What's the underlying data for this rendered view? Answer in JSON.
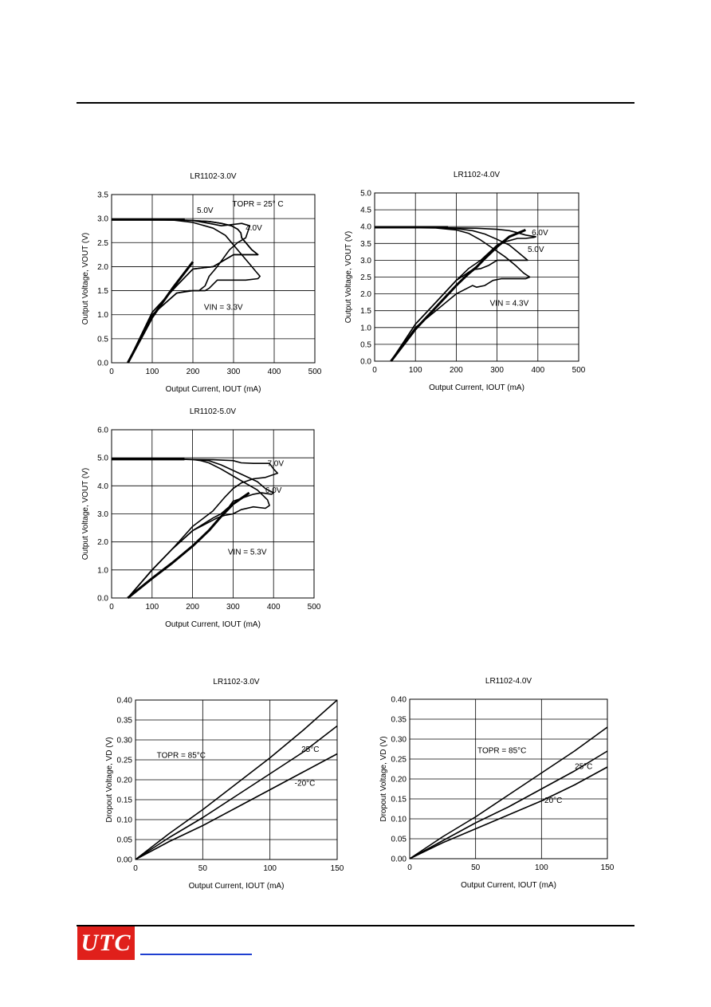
{
  "footer": {
    "logo_text": "UTC"
  },
  "chart_data": [
    {
      "type": "line",
      "title": "LR1102-3.0V",
      "xlabel": "Output Current, IOUT (mA)",
      "ylabel": "Output Voltage, VOUT (V)",
      "xlim": [
        0,
        500
      ],
      "ylim": [
        0,
        3.5
      ],
      "xticks": [
        "0",
        "100",
        "200",
        "300",
        "400",
        "500"
      ],
      "yticks": [
        "0.0",
        "0.5",
        "1.0",
        "1.5",
        "2.0",
        "2.5",
        "3.0",
        "3.5"
      ],
      "grid": true,
      "annotations": [
        {
          "text": "TOPR = 25° C",
          "x": 360,
          "y": 3.25
        },
        {
          "text": "5.0V",
          "x": 230,
          "y": 3.12
        },
        {
          "text": "4.0V",
          "x": 350,
          "y": 2.75
        },
        {
          "text": "VIN = 3.3V",
          "x": 275,
          "y": 1.1
        }
      ],
      "series": [
        {
          "x": [
            0,
            100,
            200,
            240,
            270,
            295,
            310,
            318,
            320,
            330,
            345,
            360,
            350,
            300,
            250,
            200,
            160,
            100,
            40
          ],
          "y": [
            2.98,
            2.98,
            2.96,
            2.94,
            2.9,
            2.85,
            2.78,
            2.7,
            2.6,
            2.5,
            2.35,
            2.25,
            2.25,
            2.25,
            2.0,
            1.95,
            1.6,
            1.05,
            0.0
          ]
        },
        {
          "x": [
            0,
            100,
            200,
            240,
            270,
            295,
            310,
            318,
            320,
            330,
            345,
            360,
            350,
            300,
            250,
            200,
            160,
            100,
            40
          ],
          "y": [
            2.98,
            2.98,
            2.96,
            2.94,
            2.9,
            2.85,
            2.78,
            2.7,
            2.6,
            2.5,
            2.35,
            2.25,
            2.25,
            2.25,
            2.0,
            1.95,
            1.6,
            1.05,
            0.0
          ]
        },
        {
          "x": [
            0,
            150,
            200,
            250,
            280,
            300,
            320,
            340,
            355,
            365,
            360,
            330,
            300,
            260,
            240,
            230,
            200,
            160,
            100,
            40
          ],
          "y": [
            2.98,
            2.97,
            2.92,
            2.8,
            2.65,
            2.45,
            2.25,
            2.05,
            1.9,
            1.8,
            1.75,
            1.72,
            1.72,
            1.72,
            1.55,
            1.5,
            1.5,
            1.45,
            1.0,
            0.0
          ]
        },
        {
          "x": [
            0,
            150,
            200,
            240,
            270,
            300,
            320,
            340,
            330,
            310,
            290,
            260,
            240,
            230,
            215,
            190,
            160,
            100,
            40
          ],
          "y": [
            2.98,
            2.98,
            2.96,
            2.9,
            2.85,
            2.88,
            2.9,
            2.85,
            2.6,
            2.5,
            2.35,
            2.0,
            1.8,
            1.6,
            1.5,
            1.5,
            1.45,
            1.0,
            0.0
          ]
        },
        {
          "x": [
            40,
            100,
            150,
            200
          ],
          "y": [
            0.0,
            0.95,
            1.55,
            2.1
          ]
        }
      ]
    },
    {
      "type": "line",
      "title": "LR1102-4.0V",
      "xlabel": "Output Current, IOUT (mA)",
      "ylabel": "Output Voltage, VOUT (V)",
      "xlim": [
        0,
        500
      ],
      "ylim": [
        0,
        5.0
      ],
      "xticks": [
        "0",
        "100",
        "200",
        "300",
        "400",
        "500"
      ],
      "yticks": [
        "0.0",
        "0.5",
        "1.0",
        "1.5",
        "2.0",
        "2.5",
        "3.0",
        "3.5",
        "4.0",
        "4.5",
        "5.0"
      ],
      "grid": true,
      "annotations": [
        {
          "text": "6.0V",
          "x": 405,
          "y": 3.75
        },
        {
          "text": "5.0V",
          "x": 395,
          "y": 3.25
        },
        {
          "text": "VIN = 4.3V",
          "x": 330,
          "y": 1.65
        }
      ],
      "series": [
        {
          "x": [
            0,
            150,
            200,
            250,
            300,
            330,
            350,
            370,
            395,
            390,
            370,
            350,
            320,
            300,
            260,
            230,
            200,
            150,
            100,
            40
          ],
          "y": [
            3.98,
            3.97,
            3.96,
            3.95,
            3.92,
            3.88,
            3.82,
            3.75,
            3.7,
            3.68,
            3.65,
            3.65,
            3.55,
            3.45,
            3.0,
            2.75,
            2.4,
            1.75,
            1.1,
            0.0
          ]
        },
        {
          "x": [
            0,
            150,
            200,
            240,
            270,
            300,
            330,
            350,
            370,
            375,
            360,
            330,
            300,
            280,
            260,
            240,
            200,
            150,
            100,
            40
          ],
          "y": [
            3.98,
            3.97,
            3.94,
            3.88,
            3.78,
            3.62,
            3.45,
            3.25,
            3.05,
            3.0,
            3.0,
            3.0,
            3.0,
            2.85,
            2.75,
            2.72,
            2.4,
            1.75,
            1.1,
            0.0
          ]
        },
        {
          "x": [
            0,
            150,
            200,
            230,
            260,
            290,
            320,
            345,
            365,
            380,
            370,
            340,
            310,
            290,
            270,
            250,
            240,
            200,
            150,
            100,
            40
          ],
          "y": [
            3.98,
            3.96,
            3.9,
            3.8,
            3.6,
            3.35,
            3.1,
            2.85,
            2.62,
            2.5,
            2.45,
            2.45,
            2.45,
            2.4,
            2.25,
            2.2,
            2.25,
            2.0,
            1.5,
            1.0,
            0.0
          ]
        },
        {
          "x": [
            40,
            100,
            150,
            200,
            230,
            250,
            270,
            300,
            330,
            370
          ],
          "y": [
            0.0,
            0.95,
            1.6,
            2.25,
            2.6,
            2.8,
            3.05,
            3.4,
            3.7,
            3.9
          ]
        }
      ]
    },
    {
      "type": "line",
      "title": "LR1102-5.0V",
      "xlabel": "Output Current, IOUT (mA)",
      "ylabel": "Output Voltage, VOUT (V)",
      "xlim": [
        0,
        500
      ],
      "ylim": [
        0,
        6.0
      ],
      "xticks": [
        "0",
        "100",
        "200",
        "300",
        "400",
        "500"
      ],
      "yticks": [
        "0.0",
        "1.0",
        "2.0",
        "3.0",
        "4.0",
        "5.0",
        "6.0"
      ],
      "grid": true,
      "annotations": [
        {
          "text": "7.0V",
          "x": 405,
          "y": 4.7
        },
        {
          "text": "6.0V",
          "x": 400,
          "y": 3.75
        },
        {
          "text": "VIN = 5.3V",
          "x": 335,
          "y": 1.55
        }
      ],
      "series": [
        {
          "x": [
            0,
            150,
            200,
            250,
            300,
            320,
            350,
            390,
            400,
            410,
            400,
            380,
            350,
            320,
            300,
            280,
            250,
            200,
            150,
            100,
            40
          ],
          "y": [
            4.95,
            4.95,
            4.94,
            4.93,
            4.9,
            4.82,
            4.8,
            4.8,
            4.6,
            4.45,
            4.4,
            4.3,
            4.25,
            4.1,
            3.9,
            3.6,
            3.1,
            2.55,
            1.75,
            1.0,
            0.0
          ]
        },
        {
          "x": [
            0,
            150,
            200,
            240,
            270,
            300,
            330,
            360,
            380,
            400,
            395,
            370,
            350,
            330,
            310,
            300,
            290,
            270,
            250,
            200,
            150,
            100,
            40
          ],
          "y": [
            4.95,
            4.95,
            4.94,
            4.9,
            4.75,
            4.55,
            4.35,
            4.15,
            3.9,
            3.75,
            3.7,
            3.75,
            3.7,
            3.6,
            3.5,
            3.45,
            3.25,
            3.0,
            2.85,
            2.4,
            1.75,
            1.0,
            0.0
          ]
        },
        {
          "x": [
            0,
            150,
            200,
            220,
            240,
            270,
            300,
            330,
            360,
            385,
            390,
            380,
            350,
            320,
            300,
            280,
            270,
            260,
            240,
            200,
            150,
            100,
            40
          ],
          "y": [
            4.95,
            4.95,
            4.94,
            4.9,
            4.82,
            4.6,
            4.35,
            4.1,
            3.85,
            3.5,
            3.3,
            3.2,
            3.25,
            3.15,
            3.0,
            2.95,
            2.9,
            2.85,
            2.7,
            2.4,
            1.75,
            1.0,
            0.0
          ]
        },
        {
          "x": [
            40,
            100,
            150,
            200,
            240,
            270,
            300,
            340
          ],
          "y": [
            0.0,
            0.7,
            1.25,
            1.85,
            2.4,
            2.9,
            3.35,
            3.75
          ]
        }
      ]
    },
    {
      "type": "line",
      "title": "LR1102-3.0V",
      "xlabel": "Output Current, IOUT (mA)",
      "ylabel": "Dropout Voltage, VD (V)",
      "xlim": [
        0,
        150
      ],
      "ylim": [
        0,
        0.4
      ],
      "xticks": [
        "0",
        "50",
        "100",
        "150"
      ],
      "yticks": [
        "0.00",
        "0.05",
        "0.10",
        "0.15",
        "0.20",
        "0.25",
        "0.30",
        "0.35",
        "0.40"
      ],
      "grid": true,
      "annotations": [
        {
          "text": "TOPR = 85°C",
          "x": 34,
          "y": 0.255
        },
        {
          "text": "25°C",
          "x": 130,
          "y": 0.27
        },
        {
          "text": "-20°C",
          "x": 126,
          "y": 0.185
        }
      ],
      "series": [
        {
          "name": "85°C",
          "x": [
            0,
            25,
            50,
            75,
            100,
            125,
            150
          ],
          "y": [
            0,
            0.065,
            0.125,
            0.19,
            0.255,
            0.325,
            0.4
          ]
        },
        {
          "name": "25°C",
          "x": [
            0,
            25,
            50,
            75,
            100,
            125,
            150
          ],
          "y": [
            0,
            0.055,
            0.105,
            0.16,
            0.215,
            0.27,
            0.335
          ]
        },
        {
          "name": "-20°C",
          "x": [
            0,
            25,
            50,
            75,
            100,
            125,
            150
          ],
          "y": [
            0,
            0.045,
            0.085,
            0.13,
            0.175,
            0.22,
            0.265
          ]
        }
      ]
    },
    {
      "type": "line",
      "title": "LR1102-4.0V",
      "xlabel": "Output Current, IOUT (mA)",
      "ylabel": "Dropout Voltage, VD (V)",
      "xlim": [
        0,
        150
      ],
      "ylim": [
        0,
        0.4
      ],
      "xticks": [
        "0",
        "50",
        "100",
        "150"
      ],
      "yticks": [
        "0.00",
        "0.05",
        "0.10",
        "0.15",
        "0.20",
        "0.25",
        "0.30",
        "0.35",
        "0.40"
      ],
      "grid": true,
      "annotations": [
        {
          "text": "TOPR = 85°C",
          "x": 70,
          "y": 0.265
        },
        {
          "text": "25°C",
          "x": 132,
          "y": 0.225
        },
        {
          "text": "-20°C",
          "x": 108,
          "y": 0.14
        }
      ],
      "series": [
        {
          "name": "85°C",
          "x": [
            0,
            25,
            50,
            75,
            100,
            125,
            150
          ],
          "y": [
            0,
            0.055,
            0.105,
            0.16,
            0.215,
            0.27,
            0.33
          ]
        },
        {
          "name": "25°C",
          "x": [
            0,
            25,
            50,
            75,
            100,
            125,
            150
          ],
          "y": [
            0,
            0.045,
            0.09,
            0.13,
            0.175,
            0.22,
            0.27
          ]
        },
        {
          "name": "-20°C",
          "x": [
            0,
            25,
            50,
            75,
            100,
            125,
            150
          ],
          "y": [
            0,
            0.04,
            0.075,
            0.11,
            0.145,
            0.185,
            0.23
          ]
        }
      ]
    }
  ]
}
